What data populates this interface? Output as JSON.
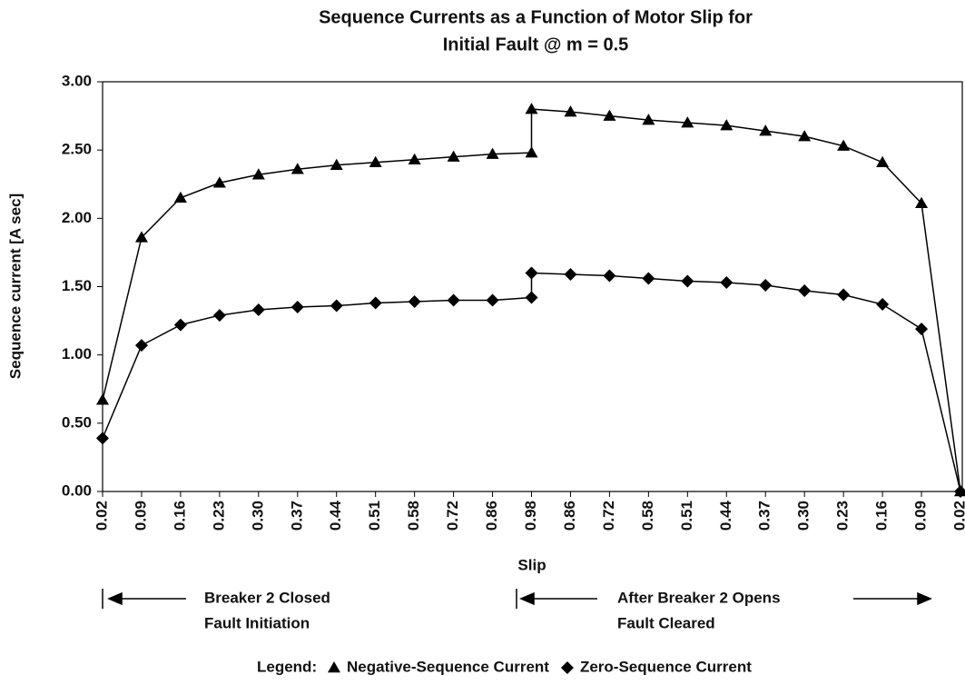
{
  "chart_data": {
    "type": "line",
    "title": [
      "Sequence Currents as a Function of Motor Slip for",
      "Initial Fault @ m = 0.5"
    ],
    "x_label": "Slip",
    "y_label": "Sequence current [A sec]",
    "categories": [
      "0.02",
      "0.09",
      "0.16",
      "0.23",
      "0.30",
      "0.37",
      "0.44",
      "0.51",
      "0.58",
      "0.72",
      "0.86",
      "0.98",
      "0.98",
      "0.86",
      "0.72",
      "0.58",
      "0.51",
      "0.44",
      "0.37",
      "0.30",
      "0.23",
      "0.16",
      "0.09",
      "0.02"
    ],
    "series": [
      {
        "name": "Negative-Sequence Current",
        "color": "#000000",
        "marker": "triangle",
        "values": [
          0.67,
          1.86,
          2.15,
          2.26,
          2.32,
          2.36,
          2.39,
          2.41,
          2.43,
          2.45,
          2.47,
          2.48,
          2.8,
          2.78,
          2.75,
          2.72,
          2.7,
          2.68,
          2.64,
          2.6,
          2.53,
          2.41,
          2.11,
          0.0
        ]
      },
      {
        "name": "Zero-Sequence Current",
        "color": "#000000",
        "marker": "diamond",
        "values": [
          0.39,
          1.07,
          1.22,
          1.29,
          1.33,
          1.35,
          1.36,
          1.38,
          1.39,
          1.4,
          1.4,
          1.42,
          1.6,
          1.59,
          1.58,
          1.56,
          1.54,
          1.53,
          1.51,
          1.47,
          1.44,
          1.37,
          1.19,
          0.0
        ]
      }
    ],
    "ylim": [
      0,
      3
    ],
    "yticks": [
      {
        "value": 0,
        "label": "0.00"
      },
      {
        "value": 0.5,
        "label": "0.50"
      },
      {
        "value": 1,
        "label": "1.00"
      },
      {
        "value": 1.5,
        "label": "1.50"
      },
      {
        "value": 2,
        "label": "2.00"
      },
      {
        "value": 2.5,
        "label": "2.50"
      },
      {
        "value": 3,
        "label": "3.00"
      }
    ],
    "grid": false,
    "annotations": [
      "Breaker 2 Closed",
      "Fault Initiation",
      "After Breaker 2 Opens",
      "Fault Cleared"
    ],
    "legend_title": "Legend:"
  }
}
